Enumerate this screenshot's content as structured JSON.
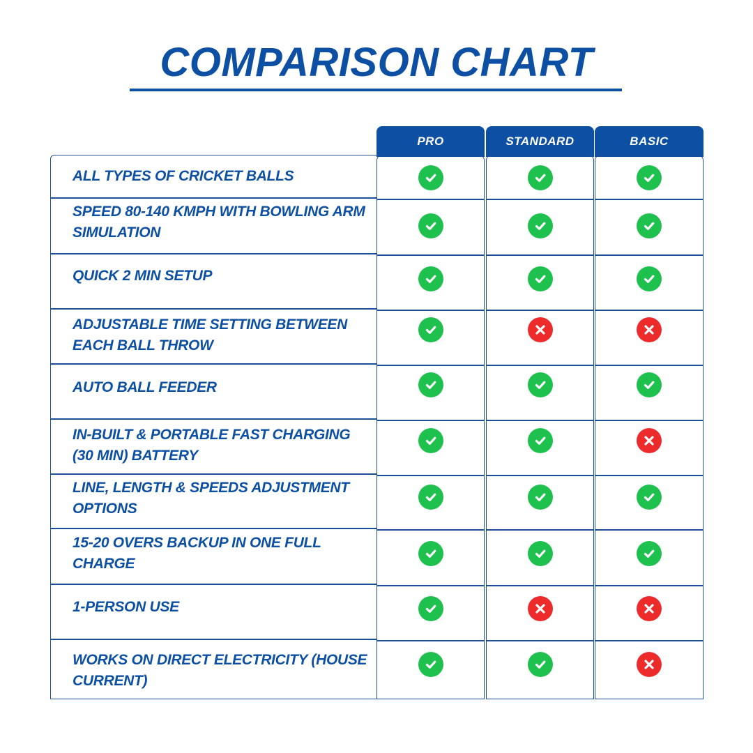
{
  "title": "COMPARISON CHART",
  "columns": [
    "PRO",
    "STANDARD",
    "BASIC"
  ],
  "colors": {
    "brand": "#0d4fa3",
    "check": "#1fc14e",
    "cross": "#ee2b2b"
  },
  "rows": [
    {
      "feature": "ALL TYPES OF CRICKET BALLS",
      "pro": "check-icon",
      "standard": "check-icon",
      "basic": "check-icon"
    },
    {
      "feature": "SPEED 80-140 KMPH WITH BOWLING ARM SIMULATION",
      "pro": "check-icon",
      "standard": "check-icon",
      "basic": "check-icon"
    },
    {
      "feature": "QUICK 2 MIN SETUP",
      "pro": "check-icon",
      "standard": "check-icon",
      "basic": "check-icon"
    },
    {
      "feature": "ADJUSTABLE TIME SETTING BETWEEN EACH BALL THROW",
      "pro": "check-icon",
      "standard": "cross-icon",
      "basic": "cross-icon"
    },
    {
      "feature": "AUTO BALL FEEDER",
      "pro": "check-icon",
      "standard": "check-icon",
      "basic": "check-icon"
    },
    {
      "feature": "IN-BUILT & PORTABLE FAST CHARGING (30 MIN) BATTERY",
      "pro": "check-icon",
      "standard": "check-icon",
      "basic": "cross-icon"
    },
    {
      "feature": "LINE, LENGTH & SPEEDS ADJUSTMENT OPTIONS",
      "pro": "check-icon",
      "standard": "check-icon",
      "basic": "check-icon"
    },
    {
      "feature": "15-20 OVERS BACKUP IN ONE FULL CHARGE",
      "pro": "check-icon",
      "standard": "check-icon",
      "basic": "check-icon"
    },
    {
      "feature": "1-PERSON USE",
      "pro": "check-icon",
      "standard": "cross-icon",
      "basic": "cross-icon"
    },
    {
      "feature": "WORKS ON DIRECT ELECTRICITY (HOUSE CURRENT)",
      "pro": "check-icon",
      "standard": "check-icon",
      "basic": "cross-icon"
    }
  ]
}
